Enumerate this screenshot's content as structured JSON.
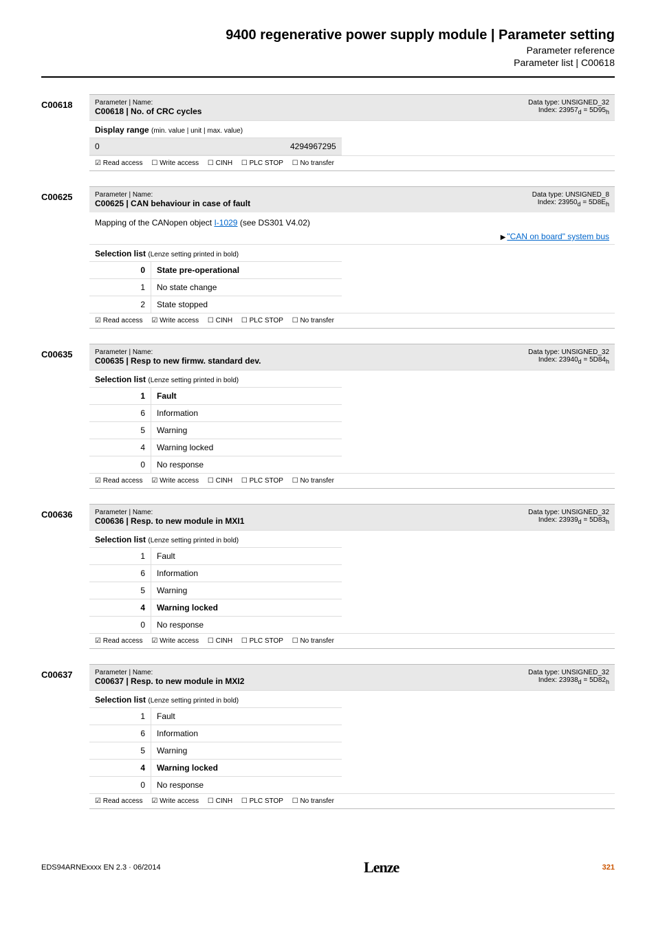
{
  "header": {
    "title": "9400 regenerative power supply module | Parameter setting",
    "subtitle1": "Parameter reference",
    "subtitle2": "Parameter list | C00618"
  },
  "flags": {
    "read_yes": "☑ Read access",
    "read_no": "☐ Read access",
    "write_yes": "☑ Write access",
    "write_no": "☐ Write access",
    "cinh": "☐ CINH",
    "plcstop": "☐ PLC STOP",
    "notransfer": "☐ No transfer"
  },
  "labels": {
    "param_name": "Parameter | Name:",
    "display_range": "Display range",
    "display_range_note": "(min. value | unit | max. value)",
    "selection_list": "Selection list",
    "selection_note": "(Lenze setting printed in bold)"
  },
  "params": [
    {
      "id": "C00618",
      "name": "C00618 | No. of CRC cycles",
      "datatype": "Data type: UNSIGNED_32",
      "index": "Index: 23957",
      "index_d": "d",
      "index_eq": " = 5D95",
      "index_h": "h",
      "type": "range",
      "range_min": "0",
      "range_max": "4294967295",
      "read": true,
      "write": false
    },
    {
      "id": "C00625",
      "name": "C00625 | CAN behaviour in case of fault",
      "datatype": "Data type: UNSIGNED_8",
      "index": "Index: 23950",
      "index_d": "d",
      "index_eq": " = 5D8E",
      "index_h": "h",
      "desc_pre": "Mapping of the CANopen object ",
      "desc_link": "I-1029",
      "desc_post": " (see DS301 V4.02)",
      "right_link": "\"CAN on board\" system bus",
      "type": "selection",
      "options": [
        {
          "k": "0",
          "v": "State pre-operational",
          "bold": true
        },
        {
          "k": "1",
          "v": "No state change",
          "bold": false
        },
        {
          "k": "2",
          "v": "State stopped",
          "bold": false
        }
      ],
      "read": true,
      "write": true
    },
    {
      "id": "C00635",
      "name": "C00635 | Resp to new firmw. standard dev.",
      "datatype": "Data type: UNSIGNED_32",
      "index": "Index: 23940",
      "index_d": "d",
      "index_eq": " = 5D84",
      "index_h": "h",
      "type": "selection",
      "options": [
        {
          "k": "1",
          "v": "Fault",
          "bold": true
        },
        {
          "k": "6",
          "v": "Information",
          "bold": false
        },
        {
          "k": "5",
          "v": "Warning",
          "bold": false
        },
        {
          "k": "4",
          "v": "Warning locked",
          "bold": false
        },
        {
          "k": "0",
          "v": "No response",
          "bold": false
        }
      ],
      "read": true,
      "write": true
    },
    {
      "id": "C00636",
      "name": "C00636 | Resp. to new module in MXI1",
      "datatype": "Data type: UNSIGNED_32",
      "index": "Index: 23939",
      "index_d": "d",
      "index_eq": " = 5D83",
      "index_h": "h",
      "type": "selection",
      "options": [
        {
          "k": "1",
          "v": "Fault",
          "bold": false
        },
        {
          "k": "6",
          "v": "Information",
          "bold": false
        },
        {
          "k": "5",
          "v": "Warning",
          "bold": false
        },
        {
          "k": "4",
          "v": "Warning locked",
          "bold": true
        },
        {
          "k": "0",
          "v": "No response",
          "bold": false
        }
      ],
      "read": true,
      "write": true
    },
    {
      "id": "C00637",
      "name": "C00637 | Resp. to new module in MXI2",
      "datatype": "Data type: UNSIGNED_32",
      "index": "Index: 23938",
      "index_d": "d",
      "index_eq": " = 5D82",
      "index_h": "h",
      "type": "selection",
      "options": [
        {
          "k": "1",
          "v": "Fault",
          "bold": false
        },
        {
          "k": "6",
          "v": "Information",
          "bold": false
        },
        {
          "k": "5",
          "v": "Warning",
          "bold": false
        },
        {
          "k": "4",
          "v": "Warning locked",
          "bold": true
        },
        {
          "k": "0",
          "v": "No response",
          "bold": false
        }
      ],
      "read": true,
      "write": true
    }
  ],
  "footer": {
    "docid": "EDS94ARNExxxx EN 2.3 · 06/2014",
    "logo": "Lenze",
    "page": "321"
  }
}
